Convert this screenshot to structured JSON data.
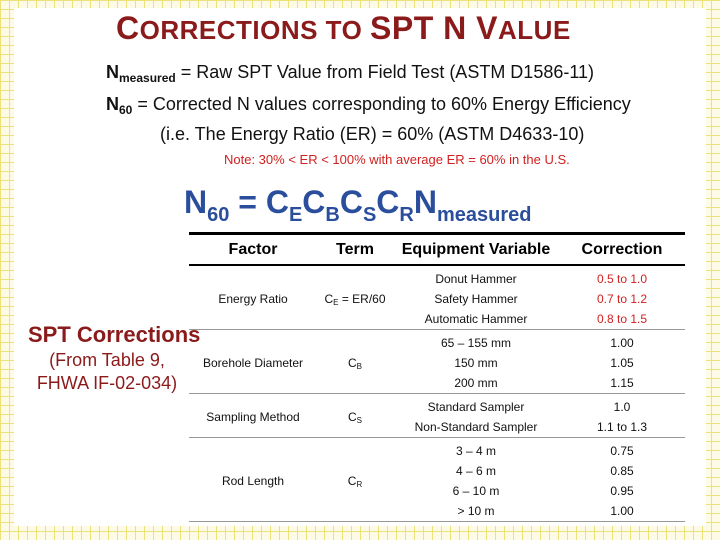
{
  "title": {
    "c1": "C",
    "r1": "ORRECTIONS",
    "mid": " TO ",
    "spt": "SPT",
    "n": " N ",
    "v": "V",
    "r2": "ALUE"
  },
  "definitions": {
    "nm_sym": "N",
    "nm_sub": "measured",
    "nm_text": " = Raw SPT Value from Field Test (ASTM D1586-11)",
    "n60_sym": "N",
    "n60_sub": "60",
    "n60_text": " = Corrected N values corresponding to 60% Energy Efficiency",
    "er_text": "(i.e. The Energy Ratio (ER) = 60% (ASTM D4633-10)"
  },
  "note": "Note:  30% < ER < 100% with average ER = 60% in the U.S.",
  "formula": {
    "N": "N",
    "s60": "60",
    "eq": " = C",
    "sE": "E",
    "C2": "C",
    "sB": "B",
    "C3": "C",
    "sS": "S",
    "C4": "C",
    "sR": "R",
    "N2": "N",
    "smeas": "measured"
  },
  "side": {
    "title": "SPT Corrections",
    "line1": "(From Table 9,",
    "line2": "FHWA IF-02-034)"
  },
  "table": {
    "headers": [
      "Factor",
      "Term",
      "Equipment Variable",
      "Correction"
    ],
    "groups": [
      {
        "factor": "Energy Ratio",
        "term_c": "C",
        "term_sub": "E",
        "term_rest": " = ER/60",
        "variables": [
          "Donut Hammer",
          "Safety Hammer",
          "Automatic Hammer"
        ],
        "corrections": [
          "0.5 to 1.0",
          "0.7 to 1.2",
          "0.8 to 1.5"
        ]
      },
      {
        "factor": "Borehole Diameter",
        "term_c": "C",
        "term_sub": "B",
        "term_rest": "",
        "variables": [
          "65 – 155 mm",
          "150 mm",
          "200 mm"
        ],
        "corrections": [
          "1.00",
          "1.05",
          "1.15"
        ]
      },
      {
        "factor": "Sampling Method",
        "term_c": "C",
        "term_sub": "S",
        "term_rest": "",
        "variables": [
          "Standard Sampler",
          "Non-Standard Sampler"
        ],
        "corrections": [
          "1.0",
          "1.1 to 1.3"
        ]
      },
      {
        "factor": "Rod Length",
        "term_c": "C",
        "term_sub": "R",
        "term_rest": "",
        "variables": [
          "3 – 4 m",
          "4 – 6 m",
          "6 – 10 m",
          "> 10 m"
        ],
        "corrections": [
          "0.75",
          "0.85",
          "0.95",
          "1.00"
        ]
      }
    ]
  },
  "colors": {
    "title": "#8b1a1a",
    "formula": "#2a4e9c",
    "accent_red": "#d21f1f",
    "grid": "#ece27a"
  }
}
